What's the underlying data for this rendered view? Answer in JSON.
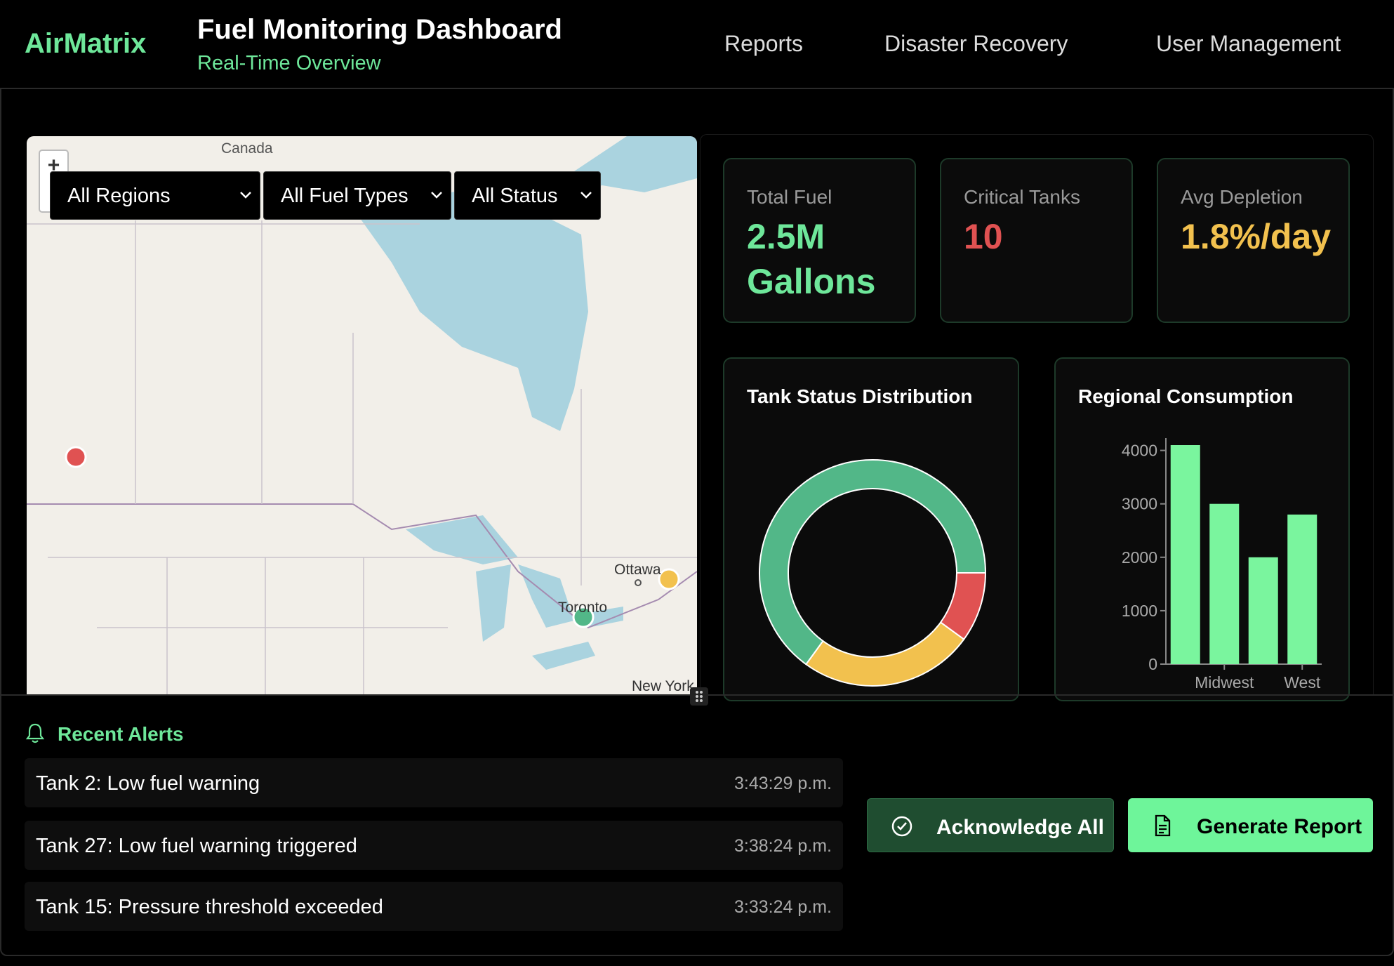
{
  "header": {
    "logo": "AirMatrix",
    "title": "Fuel Monitoring Dashboard",
    "subtitle": "Real-Time Overview",
    "nav": [
      "Reports",
      "Disaster Recovery",
      "User Management"
    ]
  },
  "map": {
    "zoom_in": "+",
    "filters": [
      "All Regions",
      "All Fuel Types",
      "All Status"
    ],
    "labels": [
      "Canada",
      "Ottawa",
      "Toronto",
      "New York"
    ]
  },
  "stats": [
    {
      "label": "Total Fuel",
      "value": "2.5M Gallons",
      "color": "#6ee79a"
    },
    {
      "label": "Critical Tanks",
      "value": "10",
      "color": "#e05252"
    },
    {
      "label": "Avg Depletion",
      "value": "1.8%/day",
      "color": "#f2c14e"
    }
  ],
  "status_chart": {
    "type": "pie",
    "title": "Tank Status Distribution",
    "values": [
      10,
      25,
      65
    ],
    "colors": [
      "#e05252",
      "#f2c14e",
      "#52b788"
    ],
    "start_angle": 90
  },
  "consumption_chart": {
    "type": "bar",
    "title": "Regional Consumption",
    "categories": [
      null,
      "Midwest",
      null,
      "West"
    ],
    "values": [
      4100,
      3000,
      2000,
      2800
    ],
    "color": "#7af59e",
    "ylim": [
      0,
      4100
    ],
    "yticks": [
      0,
      1000,
      2000,
      3000,
      4000
    ]
  },
  "alerts": {
    "title": "Recent Alerts",
    "items": [
      {
        "text": "Tank 2: Low fuel warning",
        "time": "3:43:29 p.m."
      },
      {
        "text": "Tank 27: Low fuel warning triggered",
        "time": "3:38:24 p.m."
      },
      {
        "text": "Tank 15: Pressure threshold exceeded",
        "time": "3:33:24 p.m."
      }
    ]
  },
  "buttons": [
    "Acknowledge All",
    "Generate Report"
  ]
}
